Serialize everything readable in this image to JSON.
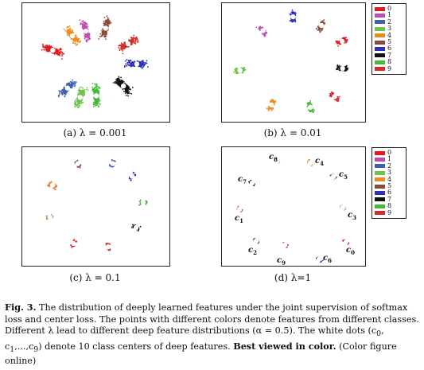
{
  "legend": {
    "entries": [
      "0",
      "1",
      "2",
      "3",
      "4",
      "5",
      "6",
      "7",
      "8",
      "9"
    ],
    "colors": [
      "#e31a1c",
      "#c04ab0",
      "#3f5fb0",
      "#6cc24a",
      "#f08a1c",
      "#8a4a3a",
      "#3030b8",
      "#111111",
      "#46b83a",
      "#d82a2a"
    ]
  },
  "panels": {
    "a": {
      "caption": "(a)  λ = 0.001"
    },
    "b": {
      "caption": "(b)  λ = 0.01"
    },
    "c": {
      "caption": "(c)  λ = 0.1"
    },
    "d": {
      "caption": "(d)  λ=1"
    }
  },
  "center_labels": {
    "c0": {
      "letter": "c",
      "sub": "0"
    },
    "c1": {
      "letter": "c",
      "sub": "1"
    },
    "c2": {
      "letter": "c",
      "sub": "2"
    },
    "c3": {
      "letter": "c",
      "sub": "3"
    },
    "c4": {
      "letter": "c",
      "sub": "4"
    },
    "c5": {
      "letter": "c",
      "sub": "5"
    },
    "c6": {
      "letter": "c",
      "sub": "6"
    },
    "c7": {
      "letter": "c",
      "sub": "7"
    },
    "c8": {
      "letter": "c",
      "sub": "8"
    },
    "c9": {
      "letter": "c",
      "sub": "9"
    }
  },
  "caption": {
    "fig_label": "Fig. 3.",
    "text1": " The distribution of deeply learned features under the joint supervision of softmax loss and center loss. The points with different colors denote features from different classes. Different λ lead to different deep feature distributions (α = 0.5). The white dots (c",
    "text2": "0",
    "text3": ", c",
    "text4": "1",
    "text5": ",...,c",
    "text6": "9",
    "text7": ") denote 10 class centers of deep features. ",
    "bold_text": "Best viewed in color.",
    "text8": " (Color figure online)"
  }
}
